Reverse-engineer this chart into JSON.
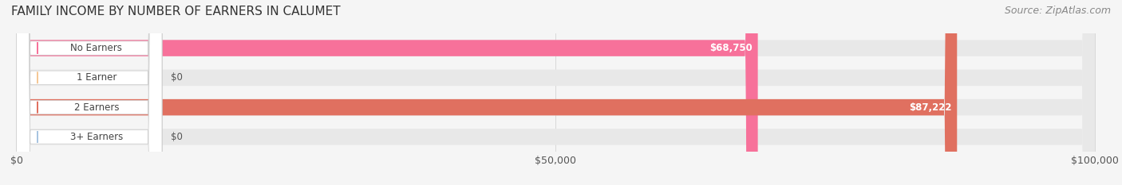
{
  "title": "FAMILY INCOME BY NUMBER OF EARNERS IN CALUMET",
  "source": "Source: ZipAtlas.com",
  "categories": [
    "No Earners",
    "1 Earner",
    "2 Earners",
    "3+ Earners"
  ],
  "values": [
    68750,
    0,
    87222,
    0
  ],
  "bar_colors": [
    "#F7719A",
    "#F5C896",
    "#E07060",
    "#A8C4E0"
  ],
  "label_bg_colors": [
    "#F7719A",
    "#F5C896",
    "#E07060",
    "#A8C4E0"
  ],
  "xmax": 100000,
  "xticks": [
    0,
    50000,
    100000
  ],
  "xtick_labels": [
    "$0",
    "$50,000",
    "$100,000"
  ],
  "background_color": "#f5f5f5",
  "bar_bg_color": "#e8e8e8",
  "title_fontsize": 11,
  "source_fontsize": 9
}
